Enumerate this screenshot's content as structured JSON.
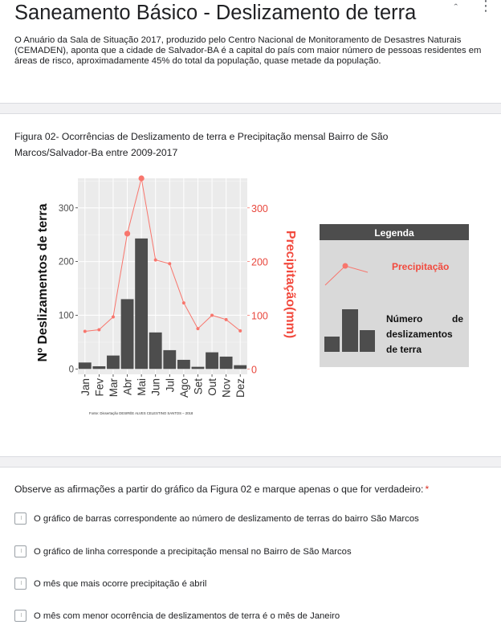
{
  "header": {
    "title": "Saneamento Básico - Deslizamento de terra",
    "description": "O Anuário da Sala de Situação 2017, produzido pelo Centro Nacional de Monitoramento de Desastres Naturais (CEMADEN), aponta que a cidade de Salvador-BA é a capital do país com maior número de pessoas residentes em áreas de risco, aproximadamente 45% do total da população, quase metade da população.",
    "icons": [
      "collapse-icon",
      "more-vert-icon"
    ]
  },
  "figure": {
    "caption": "Figura 02- Ocorrências de Deslizamento de terra  e Precipitação mensal  Bairro de São Marcos/Salvador-Ba entre 2009-2017"
  },
  "chart_data": {
    "type": "bar",
    "categories": [
      "Jan",
      "Fev",
      "Mar",
      "Abr",
      "Mai",
      "Jun",
      "Jul",
      "Ago",
      "Set",
      "Out",
      "Nov",
      "Dez"
    ],
    "series": [
      {
        "name": "Número de deslizamentos de terra",
        "type": "bar",
        "axis": "left",
        "color": "#4d4d4d",
        "values": [
          12,
          5,
          25,
          130,
          243,
          68,
          35,
          17,
          4,
          31,
          23,
          7
        ]
      },
      {
        "name": "Precipitação",
        "type": "line",
        "axis": "right",
        "color": "#f8766d",
        "values": [
          70,
          73,
          97,
          252,
          355,
          203,
          196,
          123,
          75,
          100,
          92,
          71
        ]
      }
    ],
    "ylabel": "Nº Deslizamentos de terra",
    "ylabel_right": "Precipitação(mm)",
    "ylim": [
      -10,
      355
    ],
    "yticks": [
      0,
      100,
      200,
      300
    ],
    "ylim_right": [
      -10,
      355
    ],
    "yticks_right": [
      0,
      100,
      200,
      300
    ],
    "source": "Fonte: Dissertação DESIRÉE ALVES CELESTINO SANTOS – 2018",
    "legend": {
      "title": "Legenda",
      "line_label": "Precipitação",
      "bar_label_lines": [
        "Número      de",
        "deslizamentos",
        "de terra"
      ],
      "placement": "right"
    },
    "grid": true
  },
  "question": {
    "title": "Observe as afirmações a partir do gráfico da Figura 02 e marque apenas o que for verdadeiro:",
    "required_mark": "*",
    "options": [
      {
        "label": "O gráfico de barras correspondente ao número de deslizamento de terras do bairro São Marcos"
      },
      {
        "label": "O gráfico de linha corresponde a precipitação mensal no Bairro de São Marcos"
      },
      {
        "label": "O mês que mais ocorre precipitação é abril"
      },
      {
        "label": "O mês com menor ocorrência de deslizamentos de terra é o mês de Janeiro"
      }
    ]
  }
}
